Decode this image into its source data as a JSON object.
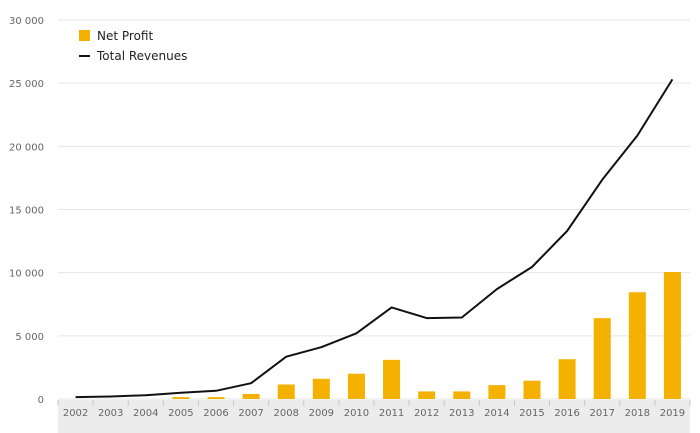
{
  "chart_data": {
    "type": "bar",
    "title": "",
    "xlabel": "",
    "ylabel": "",
    "ylim": [
      0,
      30000
    ],
    "yticks": [
      0,
      5000,
      10000,
      15000,
      20000,
      25000,
      30000
    ],
    "ytick_labels": [
      "0",
      "5 000",
      "10 000",
      "15 000",
      "20 000",
      "25 000",
      "30 000"
    ],
    "categories": [
      "2002",
      "2003",
      "2004",
      "2005",
      "2006",
      "2007",
      "2008",
      "2009",
      "2010",
      "2011",
      "2012",
      "2013",
      "2014",
      "2015",
      "2016",
      "2017",
      "2018",
      "2019"
    ],
    "series": [
      {
        "name": "Net Profit",
        "kind": "bar",
        "color": "#F5B100",
        "values": [
          0,
          0,
          0,
          150,
          150,
          400,
          1150,
          1600,
          2000,
          3100,
          600,
          600,
          1100,
          1450,
          3150,
          6400,
          8450,
          10050
        ]
      },
      {
        "name": "Total Revenues",
        "kind": "line",
        "color": "#111111",
        "values": [
          150,
          200,
          300,
          500,
          650,
          1250,
          3350,
          4100,
          5200,
          7250,
          6400,
          6450,
          8700,
          10450,
          13300,
          17350,
          20850,
          25300
        ]
      }
    ],
    "legend": {
      "position": "top-left",
      "items": [
        {
          "label": "Net Profit",
          "icon": "square-swatch-icon"
        },
        {
          "label": "Total Revenues",
          "icon": "line-swatch-icon"
        }
      ]
    },
    "grid": true
  }
}
